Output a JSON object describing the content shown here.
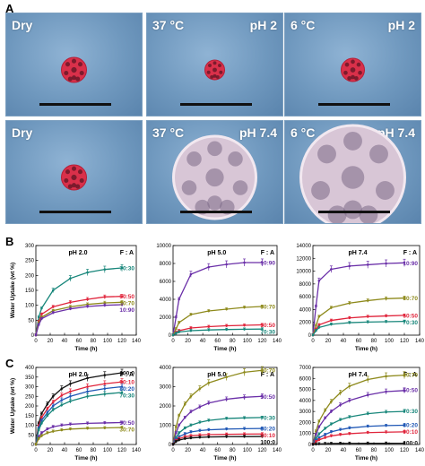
{
  "figure": {
    "panel_a_label": "A",
    "panel_b_label": "B",
    "panel_c_label": "C"
  },
  "photos": [
    {
      "left_label": "Dry",
      "right_label": ""
    },
    {
      "left_label": "37 °C",
      "right_label": "pH 2"
    },
    {
      "left_label": "6 °C",
      "right_label": "pH 2"
    },
    {
      "left_label": "Dry",
      "right_label": ""
    },
    {
      "left_label": "37 °C",
      "right_label": "pH 7.4"
    },
    {
      "left_label": "6 °C",
      "right_label": "pH 7.4"
    }
  ],
  "colors": {
    "ratio_10_90": "#6a2fa8",
    "ratio_30_70": "#8e8a1c",
    "ratio_50_50": "#e0243b",
    "ratio_70_30": "#17867a",
    "ratio_80_20": "#1f57b5",
    "ratio_90_10": "#e0243b",
    "ratio_100_0": "#111111",
    "photo_background": "#6f98be",
    "gel_red": "#d9304a",
    "gel_clear": "#d8c6d6"
  },
  "chart_data": [
    {
      "type": "line",
      "panel": "B",
      "title": "pH 2.0",
      "legend_title": "F : A",
      "xlabel": "Time (h)",
      "ylabel": "Water Uptake (wt %)",
      "xlim": [
        0,
        140
      ],
      "ylim": [
        0,
        300
      ],
      "xticks": [
        "0",
        "20",
        "40",
        "60",
        "80",
        "100",
        "120",
        "140"
      ],
      "yticks": [
        "0",
        "50",
        "100",
        "150",
        "200",
        "250",
        "300"
      ],
      "x": [
        0,
        4,
        8,
        24,
        48,
        72,
        96,
        120
      ],
      "series": [
        {
          "name": "70:30",
          "color": "#17867a",
          "values": [
            0,
            60,
            90,
            150,
            190,
            210,
            220,
            225
          ]
        },
        {
          "name": "50:50",
          "color": "#e0243b",
          "values": [
            0,
            45,
            70,
            95,
            110,
            120,
            128,
            130
          ]
        },
        {
          "name": "30:70",
          "color": "#8e8a1c",
          "values": [
            0,
            40,
            60,
            82,
            95,
            103,
            108,
            110
          ]
        },
        {
          "name": "10:90",
          "color": "#6a2fa8",
          "values": [
            0,
            35,
            55,
            75,
            88,
            96,
            100,
            102
          ]
        }
      ]
    },
    {
      "type": "line",
      "panel": "B",
      "title": "pH 5.0",
      "legend_title": "F : A",
      "xlabel": "Time (h)",
      "ylabel": "",
      "xlim": [
        0,
        140
      ],
      "ylim": [
        0,
        10000
      ],
      "xticks": [
        "0",
        "20",
        "40",
        "60",
        "80",
        "100",
        "120",
        "140"
      ],
      "yticks": [
        "0",
        "2000",
        "4000",
        "6000",
        "8000",
        "10000"
      ],
      "x": [
        0,
        4,
        8,
        24,
        48,
        72,
        96,
        120
      ],
      "series": [
        {
          "name": "10:90",
          "color": "#6a2fa8",
          "values": [
            0,
            2000,
            4000,
            6800,
            7600,
            7900,
            8100,
            8100
          ]
        },
        {
          "name": "30:70",
          "color": "#8e8a1c",
          "values": [
            0,
            700,
            1400,
            2300,
            2700,
            2900,
            3100,
            3200
          ]
        },
        {
          "name": "50:50",
          "color": "#e0243b",
          "values": [
            0,
            300,
            500,
            800,
            950,
            1050,
            1100,
            1150
          ]
        },
        {
          "name": "70:30",
          "color": "#17867a",
          "values": [
            0,
            200,
            350,
            500,
            580,
            630,
            660,
            680
          ]
        }
      ]
    },
    {
      "type": "line",
      "panel": "B",
      "title": "pH 7.4",
      "legend_title": "F : A",
      "xlabel": "Time (h)",
      "ylabel": "",
      "xlim": [
        0,
        140
      ],
      "ylim": [
        0,
        14000
      ],
      "xticks": [
        "0",
        "20",
        "40",
        "60",
        "80",
        "100",
        "120",
        "140"
      ],
      "yticks": [
        "0",
        "2000",
        "4000",
        "6000",
        "8000",
        "10000",
        "12000",
        "14000"
      ],
      "x": [
        0,
        4,
        8,
        24,
        48,
        72,
        96,
        120
      ],
      "series": [
        {
          "name": "10:90",
          "color": "#6a2fa8",
          "values": [
            0,
            4500,
            8500,
            10300,
            10800,
            11000,
            11200,
            11300
          ]
        },
        {
          "name": "30:70",
          "color": "#8e8a1c",
          "values": [
            0,
            1500,
            2900,
            4300,
            5000,
            5400,
            5700,
            5800
          ]
        },
        {
          "name": "50:50",
          "color": "#e0243b",
          "values": [
            0,
            900,
            1600,
            2300,
            2700,
            2900,
            3000,
            3100
          ]
        },
        {
          "name": "70:30",
          "color": "#17867a",
          "values": [
            0,
            700,
            1200,
            1700,
            1950,
            2050,
            2100,
            2150
          ]
        }
      ]
    },
    {
      "type": "line",
      "panel": "C",
      "title": "pH 2.0",
      "legend_title": "F : A",
      "xlabel": "Time (h)",
      "ylabel": "Water Uptake (wt %)",
      "xlim": [
        0,
        140
      ],
      "ylim": [
        0,
        400
      ],
      "xticks": [
        "0",
        "20",
        "40",
        "60",
        "80",
        "100",
        "120",
        "140"
      ],
      "yticks": [
        "0",
        "50",
        "100",
        "150",
        "200",
        "250",
        "300",
        "350",
        "400"
      ],
      "x": [
        0,
        4,
        8,
        16,
        24,
        36,
        48,
        72,
        96,
        120
      ],
      "series": [
        {
          "name": "100:0",
          "color": "#111111",
          "values": [
            0,
            110,
            160,
            210,
            250,
            290,
            315,
            345,
            360,
            372
          ]
        },
        {
          "name": "90:10",
          "color": "#e0243b",
          "values": [
            0,
            95,
            140,
            185,
            220,
            255,
            275,
            300,
            315,
            325
          ]
        },
        {
          "name": "80:20",
          "color": "#1f57b5",
          "values": [
            0,
            85,
            125,
            165,
            200,
            230,
            250,
            275,
            290,
            300
          ]
        },
        {
          "name": "70:30",
          "color": "#17867a",
          "values": [
            0,
            75,
            110,
            150,
            180,
            205,
            225,
            250,
            262,
            270
          ]
        },
        {
          "name": "50:50",
          "color": "#6a2fa8",
          "values": [
            0,
            40,
            60,
            80,
            92,
            100,
            105,
            110,
            112,
            114
          ]
        },
        {
          "name": "30:70",
          "color": "#8e8a1c",
          "values": [
            0,
            30,
            45,
            60,
            68,
            75,
            80,
            84,
            86,
            88
          ]
        }
      ]
    },
    {
      "type": "line",
      "panel": "C",
      "title": "pH 5.0",
      "legend_title": "F : A",
      "xlabel": "Time (h)",
      "ylabel": "",
      "xlim": [
        0,
        140
      ],
      "ylim": [
        0,
        4000
      ],
      "xticks": [
        "0",
        "20",
        "40",
        "60",
        "80",
        "100",
        "120",
        "140"
      ],
      "yticks": [
        "0",
        "1000",
        "2000",
        "3000",
        "4000"
      ],
      "x": [
        0,
        4,
        8,
        16,
        24,
        36,
        48,
        72,
        96,
        120
      ],
      "series": [
        {
          "name": "30:70",
          "color": "#8e8a1c",
          "values": [
            0,
            900,
            1500,
            2100,
            2500,
            2900,
            3200,
            3500,
            3750,
            3850
          ]
        },
        {
          "name": "50:50",
          "color": "#6a2fa8",
          "values": [
            0,
            600,
            1000,
            1400,
            1700,
            1950,
            2150,
            2350,
            2450,
            2500
          ]
        },
        {
          "name": "70:30",
          "color": "#17867a",
          "values": [
            0,
            350,
            600,
            850,
            1000,
            1150,
            1250,
            1350,
            1380,
            1400
          ]
        },
        {
          "name": "80:20",
          "color": "#1f57b5",
          "values": [
            0,
            250,
            400,
            550,
            650,
            720,
            760,
            800,
            820,
            830
          ]
        },
        {
          "name": "90:10",
          "color": "#e0243b",
          "values": [
            0,
            200,
            300,
            400,
            450,
            490,
            510,
            530,
            540,
            545
          ]
        },
        {
          "name": "100:0",
          "color": "#111111",
          "values": [
            0,
            150,
            230,
            300,
            340,
            370,
            390,
            405,
            410,
            415
          ]
        }
      ]
    },
    {
      "type": "line",
      "panel": "C",
      "title": "pH 7.4",
      "legend_title": "F : A",
      "xlabel": "Time (h)",
      "ylabel": "",
      "xlim": [
        0,
        140
      ],
      "ylim": [
        0,
        7000
      ],
      "xticks": [
        "0",
        "20",
        "40",
        "60",
        "80",
        "100",
        "120",
        "140"
      ],
      "yticks": [
        "0",
        "1000",
        "2000",
        "3000",
        "4000",
        "5000",
        "6000",
        "7000"
      ],
      "x": [
        0,
        4,
        8,
        16,
        24,
        36,
        48,
        72,
        96,
        120
      ],
      "series": [
        {
          "name": "30:70",
          "color": "#8e8a1c",
          "values": [
            0,
            1200,
            2100,
            3100,
            3900,
            4700,
            5300,
            5900,
            6200,
            6300
          ]
        },
        {
          "name": "50:50",
          "color": "#6a2fa8",
          "values": [
            0,
            900,
            1600,
            2400,
            3000,
            3600,
            4000,
            4500,
            4800,
            4900
          ]
        },
        {
          "name": "70:30",
          "color": "#17867a",
          "values": [
            0,
            550,
            950,
            1450,
            1850,
            2250,
            2500,
            2800,
            2950,
            3000
          ]
        },
        {
          "name": "80:20",
          "color": "#1f57b5",
          "values": [
            0,
            350,
            600,
            900,
            1150,
            1350,
            1500,
            1650,
            1720,
            1750
          ]
        },
        {
          "name": "90:10",
          "color": "#e0243b",
          "values": [
            0,
            250,
            420,
            620,
            780,
            900,
            980,
            1080,
            1120,
            1150
          ]
        },
        {
          "name": "100:0",
          "color": "#111111",
          "values": [
            0,
            30,
            50,
            70,
            85,
            95,
            100,
            105,
            108,
            110
          ]
        }
      ]
    }
  ]
}
